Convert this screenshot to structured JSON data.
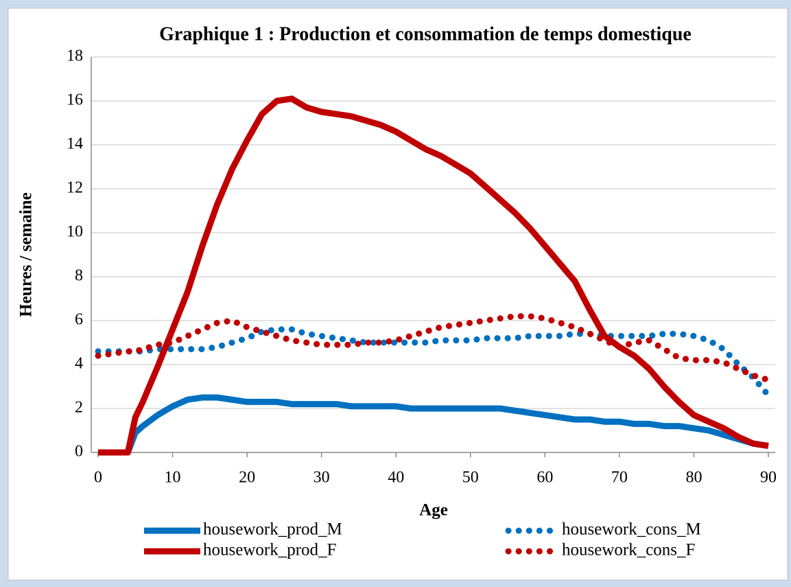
{
  "chart_data": {
    "type": "line",
    "title": "Graphique 1 : Production et consommation de temps domestique",
    "x_label": "Age",
    "y_label": "Heures / semaine",
    "x": [
      0,
      2,
      4,
      5,
      6,
      8,
      10,
      12,
      14,
      16,
      18,
      20,
      22,
      24,
      26,
      28,
      30,
      32,
      34,
      36,
      38,
      40,
      42,
      44,
      46,
      48,
      50,
      52,
      54,
      56,
      58,
      60,
      62,
      64,
      66,
      68,
      70,
      72,
      74,
      76,
      78,
      80,
      82,
      84,
      86,
      88,
      90
    ],
    "series": [
      {
        "name": "housework_prod_M",
        "color": "#0070c0",
        "style": "solid",
        "values": [
          0,
          0,
          0,
          0.9,
          1.2,
          1.7,
          2.1,
          2.4,
          2.5,
          2.5,
          2.4,
          2.3,
          2.3,
          2.3,
          2.2,
          2.2,
          2.2,
          2.2,
          2.1,
          2.1,
          2.1,
          2.1,
          2.0,
          2.0,
          2.0,
          2.0,
          2.0,
          2.0,
          2.0,
          1.9,
          1.8,
          1.7,
          1.6,
          1.5,
          1.5,
          1.4,
          1.4,
          1.3,
          1.3,
          1.2,
          1.2,
          1.1,
          1.0,
          0.8,
          0.6,
          0.4,
          0.3
        ]
      },
      {
        "name": "housework_cons_M",
        "color": "#0070c0",
        "style": "dotted",
        "values": [
          4.6,
          4.6,
          4.6,
          4.6,
          4.6,
          4.7,
          4.7,
          4.7,
          4.7,
          4.8,
          5.0,
          5.2,
          5.5,
          5.6,
          5.6,
          5.4,
          5.3,
          5.2,
          5.1,
          5.0,
          5.0,
          5.0,
          5.0,
          5.0,
          5.1,
          5.1,
          5.1,
          5.2,
          5.2,
          5.2,
          5.3,
          5.3,
          5.3,
          5.4,
          5.4,
          5.3,
          5.3,
          5.3,
          5.3,
          5.4,
          5.4,
          5.3,
          5.1,
          4.7,
          4.0,
          3.4,
          2.6
        ]
      },
      {
        "name": "housework_prod_F",
        "color": "#c00000",
        "style": "solid",
        "values": [
          0,
          0,
          0,
          1.6,
          2.3,
          3.9,
          5.6,
          7.3,
          9.4,
          11.3,
          12.9,
          14.2,
          15.4,
          16.0,
          16.1,
          15.7,
          15.5,
          15.4,
          15.3,
          15.1,
          14.9,
          14.6,
          14.2,
          13.8,
          13.5,
          13.1,
          12.7,
          12.1,
          11.5,
          10.9,
          10.2,
          9.4,
          8.6,
          7.8,
          6.5,
          5.3,
          4.8,
          4.4,
          3.8,
          3.0,
          2.3,
          1.7,
          1.4,
          1.1,
          0.7,
          0.4,
          0.3
        ]
      },
      {
        "name": "housework_cons_F",
        "color": "#c00000",
        "style": "dotted",
        "values": [
          4.4,
          4.5,
          4.6,
          4.6,
          4.7,
          4.9,
          5.0,
          5.3,
          5.6,
          5.9,
          6.0,
          5.7,
          5.5,
          5.3,
          5.1,
          5.0,
          4.9,
          4.9,
          4.9,
          5.0,
          5.0,
          5.1,
          5.3,
          5.5,
          5.7,
          5.8,
          5.9,
          6.0,
          6.1,
          6.2,
          6.2,
          6.1,
          5.9,
          5.7,
          5.4,
          5.1,
          4.8,
          5.0,
          5.1,
          4.7,
          4.3,
          4.2,
          4.2,
          4.1,
          3.8,
          3.5,
          3.3
        ]
      }
    ],
    "xlim": [
      0,
      90
    ],
    "xticks": [
      0,
      10,
      20,
      30,
      40,
      50,
      60,
      70,
      80,
      90
    ],
    "ylim": [
      0,
      18
    ],
    "yticks": [
      0,
      2,
      4,
      6,
      8,
      10,
      12,
      14,
      16,
      18
    ],
    "grid": true,
    "legend": "bottom"
  }
}
